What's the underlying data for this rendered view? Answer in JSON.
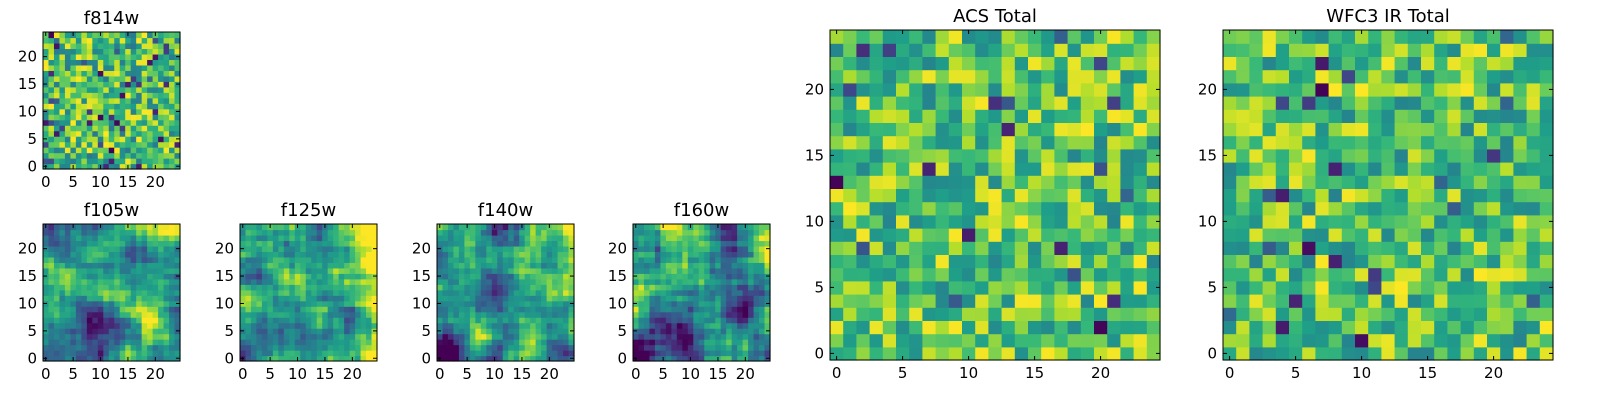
{
  "chart_data": [
    {
      "type": "heatmap",
      "title": "f814w",
      "x_ticks": [
        "0",
        "5",
        "10",
        "15",
        "20"
      ],
      "y_ticks": [
        "0",
        "5",
        "10",
        "15",
        "20"
      ],
      "xlim": [
        -0.5,
        24.5
      ],
      "ylim": [
        -0.5,
        24.5
      ],
      "grid_size": 25,
      "colormap": "viridis"
    },
    {
      "type": "heatmap",
      "title": "f105w",
      "x_ticks": [
        "0",
        "5",
        "10",
        "15",
        "20"
      ],
      "y_ticks": [
        "0",
        "5",
        "10",
        "15",
        "20"
      ],
      "xlim": [
        -0.5,
        24.5
      ],
      "ylim": [
        -0.5,
        24.5
      ],
      "grid_size": 25,
      "colormap": "viridis"
    },
    {
      "type": "heatmap",
      "title": "f125w",
      "x_ticks": [
        "0",
        "5",
        "10",
        "15",
        "20"
      ],
      "y_ticks": [
        "0",
        "5",
        "10",
        "15",
        "20"
      ],
      "xlim": [
        -0.5,
        24.5
      ],
      "ylim": [
        -0.5,
        24.5
      ],
      "grid_size": 25,
      "colormap": "viridis"
    },
    {
      "type": "heatmap",
      "title": "f140w",
      "x_ticks": [
        "0",
        "5",
        "10",
        "15",
        "20"
      ],
      "y_ticks": [
        "0",
        "5",
        "10",
        "15",
        "20"
      ],
      "xlim": [
        -0.5,
        24.5
      ],
      "ylim": [
        -0.5,
        24.5
      ],
      "grid_size": 25,
      "colormap": "viridis"
    },
    {
      "type": "heatmap",
      "title": "f160w",
      "x_ticks": [
        "0",
        "5",
        "10",
        "15",
        "20"
      ],
      "y_ticks": [
        "0",
        "5",
        "10",
        "15",
        "20"
      ],
      "xlim": [
        -0.5,
        24.5
      ],
      "ylim": [
        -0.5,
        24.5
      ],
      "grid_size": 25,
      "colormap": "viridis"
    },
    {
      "type": "heatmap",
      "title": "ACS Total",
      "x_ticks": [
        "0",
        "5",
        "10",
        "15",
        "20"
      ],
      "y_ticks": [
        "0",
        "5",
        "10",
        "15",
        "20"
      ],
      "xlim": [
        -0.5,
        24.5
      ],
      "ylim": [
        -0.5,
        24.5
      ],
      "grid_size": 25,
      "colormap": "viridis"
    },
    {
      "type": "heatmap",
      "title": "WFC3 IR Total",
      "x_ticks": [
        "0",
        "5",
        "10",
        "15",
        "20"
      ],
      "y_ticks": [
        "0",
        "5",
        "10",
        "15",
        "20"
      ],
      "xlim": [
        -0.5,
        24.5
      ],
      "ylim": [
        -0.5,
        24.5
      ],
      "grid_size": 25,
      "colormap": "viridis"
    }
  ]
}
